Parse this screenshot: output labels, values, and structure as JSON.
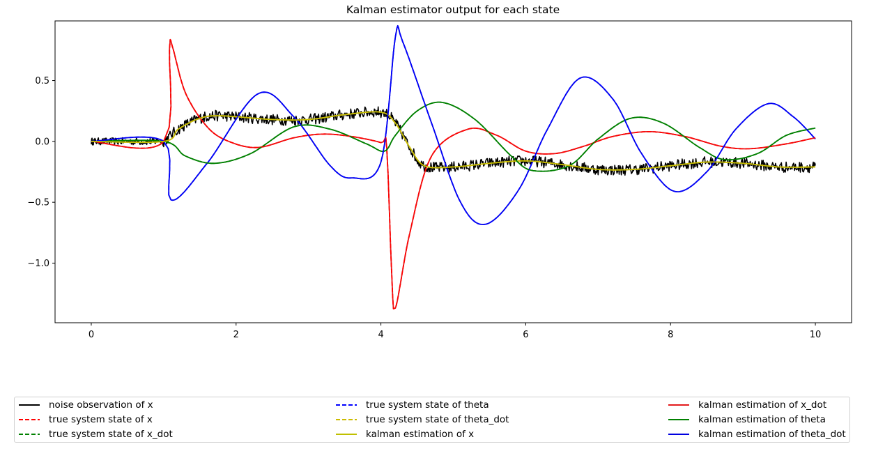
{
  "chart_data": {
    "type": "line",
    "title": "Kalman estimator output for each state",
    "xlabel": "",
    "ylabel": "",
    "xlim": [
      -0.5,
      10.5
    ],
    "ylim": [
      -1.49,
      0.99
    ],
    "xticks": [
      0,
      2,
      4,
      6,
      8,
      10
    ],
    "xtick_labels": [
      "0",
      "2",
      "4",
      "6",
      "8",
      "10"
    ],
    "yticks": [
      0.5,
      0.0,
      -0.5,
      -1.0
    ],
    "ytick_labels": [
      "0.5",
      "0.0",
      "−0.5",
      "−1.0"
    ],
    "grid": false,
    "legend_position": "below plot, three columns",
    "series": [
      {
        "name": "noise observation of x",
        "color": "#000000",
        "dash": "solid",
        "noisy": true,
        "x": [
          0,
          0.9,
          1.0,
          1.2,
          1.5,
          1.8,
          2.5,
          3.0,
          3.5,
          4.0,
          4.2,
          4.4,
          4.6,
          5.0,
          5.5,
          6.0,
          6.5,
          7.0,
          7.5,
          8.0,
          8.5,
          9.0,
          9.5,
          10.0
        ],
        "y": [
          0,
          0,
          0.0,
          0.1,
          0.19,
          0.21,
          0.18,
          0.18,
          0.22,
          0.24,
          0.15,
          -0.05,
          -0.2,
          -0.21,
          -0.18,
          -0.16,
          -0.19,
          -0.23,
          -0.23,
          -0.2,
          -0.17,
          -0.18,
          -0.21,
          -0.21
        ]
      },
      {
        "name": "true system state of x",
        "color": "#ff0000",
        "dash": "dashed",
        "x": [
          0,
          1.0,
          1.08,
          1.12,
          1.3,
          1.6,
          1.9,
          2.3,
          2.8,
          3.2,
          3.6,
          4.0,
          4.08,
          4.15,
          4.2,
          4.4,
          4.7,
          5.2,
          5.6,
          6.0,
          6.4,
          6.8,
          7.2,
          7.7,
          8.2,
          8.7,
          9.1,
          9.6,
          10.0
        ],
        "y": [
          0,
          0,
          0.76,
          0.78,
          0.4,
          0.12,
          0.0,
          -0.05,
          0.03,
          0.06,
          0.04,
          -0.01,
          -0.05,
          -1.1,
          -1.37,
          -0.75,
          -0.12,
          0.1,
          0.05,
          -0.08,
          -0.1,
          -0.04,
          0.04,
          0.08,
          0.04,
          -0.04,
          -0.06,
          -0.02,
          0.03
        ]
      },
      {
        "name": "true system state of x_dot",
        "color": "#008000",
        "dash": "dashed",
        "x": [
          0,
          1.0,
          1.3,
          1.7,
          2.2,
          2.8,
          3.3,
          3.8,
          4.05,
          4.2,
          4.5,
          4.85,
          5.3,
          5.8,
          6.1,
          6.6,
          7.0,
          7.45,
          7.9,
          8.4,
          8.75,
          9.2,
          9.6,
          10.0
        ],
        "y": [
          0,
          0,
          -0.12,
          -0.18,
          -0.1,
          0.12,
          0.1,
          -0.02,
          -0.08,
          0.05,
          0.25,
          0.32,
          0.18,
          -0.12,
          -0.24,
          -0.2,
          0.02,
          0.19,
          0.15,
          -0.05,
          -0.15,
          -0.1,
          0.05,
          0.11
        ]
      },
      {
        "name": "true system state of theta",
        "color": "#0000ff",
        "dash": "dashed",
        "x": [
          0,
          1.0,
          1.1,
          1.6,
          2.3,
          2.8,
          3.3,
          3.6,
          4.0,
          4.2,
          4.3,
          4.7,
          5.1,
          5.45,
          5.9,
          6.3,
          6.75,
          7.2,
          7.6,
          8.05,
          8.5,
          8.9,
          9.35,
          9.7,
          10.0
        ],
        "y": [
          0,
          0,
          -0.48,
          -0.18,
          0.39,
          0.2,
          -0.2,
          -0.3,
          -0.17,
          0.86,
          0.82,
          0.15,
          -0.5,
          -0.68,
          -0.4,
          0.1,
          0.52,
          0.35,
          -0.1,
          -0.41,
          -0.25,
          0.1,
          0.31,
          0.2,
          0.02
        ]
      },
      {
        "name": "true system state of theta_dot",
        "color": "#ccbb00",
        "dash": "dashed",
        "x": [
          0,
          1.0,
          1.2,
          1.5,
          1.8,
          2.5,
          3.0,
          3.5,
          4.0,
          4.2,
          4.4,
          4.6,
          5.0,
          5.5,
          6.0,
          6.5,
          7.0,
          7.5,
          8.0,
          8.5,
          9.0,
          9.5,
          10.0
        ],
        "y": [
          0,
          0,
          0.1,
          0.19,
          0.21,
          0.18,
          0.18,
          0.22,
          0.24,
          0.15,
          -0.05,
          -0.2,
          -0.21,
          -0.18,
          -0.16,
          -0.19,
          -0.23,
          -0.23,
          -0.2,
          -0.17,
          -0.18,
          -0.21,
          -0.21
        ]
      },
      {
        "name": "kalman estimation of x",
        "color": "#bfbf00",
        "dash": "solid",
        "x": [
          0,
          1.0,
          1.2,
          1.5,
          1.8,
          2.5,
          3.0,
          3.5,
          4.0,
          4.2,
          4.4,
          4.6,
          5.0,
          5.5,
          6.0,
          6.5,
          7.0,
          7.5,
          8.0,
          8.5,
          9.0,
          9.5,
          10.0
        ],
        "y": [
          0,
          0,
          0.1,
          0.19,
          0.21,
          0.18,
          0.18,
          0.22,
          0.24,
          0.15,
          -0.05,
          -0.2,
          -0.21,
          -0.18,
          -0.16,
          -0.19,
          -0.23,
          -0.23,
          -0.2,
          -0.17,
          -0.18,
          -0.21,
          -0.21
        ]
      },
      {
        "name": "kalman estimation of x_dot",
        "color": "#e31a1c",
        "dash": "solid",
        "x": [
          0,
          1.0,
          1.08,
          1.12,
          1.3,
          1.6,
          1.9,
          2.3,
          2.8,
          3.2,
          3.6,
          4.0,
          4.08,
          4.15,
          4.2,
          4.4,
          4.7,
          5.2,
          5.6,
          6.0,
          6.4,
          6.8,
          7.2,
          7.7,
          8.2,
          8.7,
          9.1,
          9.6,
          10.0
        ],
        "y": [
          0,
          0,
          0.76,
          0.78,
          0.4,
          0.12,
          0.0,
          -0.05,
          0.03,
          0.06,
          0.04,
          -0.01,
          -0.05,
          -1.1,
          -1.37,
          -0.75,
          -0.12,
          0.1,
          0.05,
          -0.08,
          -0.1,
          -0.04,
          0.04,
          0.08,
          0.04,
          -0.04,
          -0.06,
          -0.02,
          0.03
        ]
      },
      {
        "name": "kalman estimation of theta",
        "color": "#008000",
        "dash": "solid",
        "x": [
          0,
          1.0,
          1.3,
          1.7,
          2.2,
          2.8,
          3.3,
          3.8,
          4.05,
          4.2,
          4.5,
          4.85,
          5.3,
          5.8,
          6.1,
          6.6,
          7.0,
          7.45,
          7.9,
          8.4,
          8.75,
          9.2,
          9.6,
          10.0
        ],
        "y": [
          0,
          0,
          -0.12,
          -0.18,
          -0.1,
          0.12,
          0.1,
          -0.02,
          -0.08,
          0.05,
          0.25,
          0.32,
          0.18,
          -0.12,
          -0.24,
          -0.2,
          0.02,
          0.19,
          0.15,
          -0.05,
          -0.15,
          -0.1,
          0.05,
          0.11
        ]
      },
      {
        "name": "kalman estimation of theta_dot",
        "color": "#0000e0",
        "dash": "solid",
        "x": [
          0,
          1.0,
          1.1,
          1.6,
          2.3,
          2.8,
          3.3,
          3.6,
          4.0,
          4.2,
          4.3,
          4.7,
          5.1,
          5.45,
          5.9,
          6.3,
          6.75,
          7.2,
          7.6,
          8.05,
          8.5,
          8.9,
          9.35,
          9.7,
          10.0
        ],
        "y": [
          0,
          0,
          -0.48,
          -0.18,
          0.39,
          0.2,
          -0.2,
          -0.3,
          -0.17,
          0.86,
          0.82,
          0.15,
          -0.5,
          -0.68,
          -0.4,
          0.1,
          0.52,
          0.35,
          -0.1,
          -0.41,
          -0.25,
          0.1,
          0.31,
          0.2,
          0.02
        ]
      }
    ]
  },
  "legend": {
    "items": [
      {
        "label": "noise observation of x",
        "color": "#000000",
        "dash": "solid"
      },
      {
        "label": "true system state of x",
        "color": "#ff0000",
        "dash": "dashed"
      },
      {
        "label": "true system state of x_dot",
        "color": "#008000",
        "dash": "dashed"
      },
      {
        "label": "true system state of theta",
        "color": "#0000ff",
        "dash": "dashed"
      },
      {
        "label": "true system state of theta_dot",
        "color": "#ccbb00",
        "dash": "dashed"
      },
      {
        "label": "kalman estimation of x",
        "color": "#bfbf00",
        "dash": "solid"
      },
      {
        "label": "kalman estimation of x_dot",
        "color": "#e31a1c",
        "dash": "solid"
      },
      {
        "label": "kalman estimation of theta",
        "color": "#008000",
        "dash": "solid"
      },
      {
        "label": "kalman estimation of theta_dot",
        "color": "#0000e0",
        "dash": "solid"
      }
    ]
  }
}
